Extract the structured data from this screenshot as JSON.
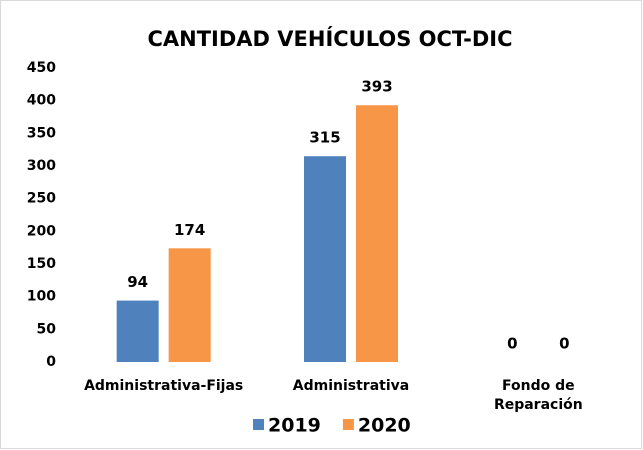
{
  "chart_data": {
    "type": "bar",
    "title": "CANTIDAD VEHÍCULOS OCT-DIC",
    "categories": [
      "Administrativa-Fijas",
      "Administrativa",
      "Fondo de Reparación"
    ],
    "series": [
      {
        "name": "2019",
        "color": "#4f81bd",
        "values": [
          94,
          315,
          0
        ]
      },
      {
        "name": "2020",
        "color": "#f79646",
        "values": [
          174,
          393,
          0
        ]
      }
    ],
    "ylim": [
      0,
      450
    ],
    "yticks": [
      0,
      50,
      100,
      150,
      200,
      250,
      300,
      350,
      400,
      450
    ],
    "grid": false,
    "legend": "bottom"
  }
}
